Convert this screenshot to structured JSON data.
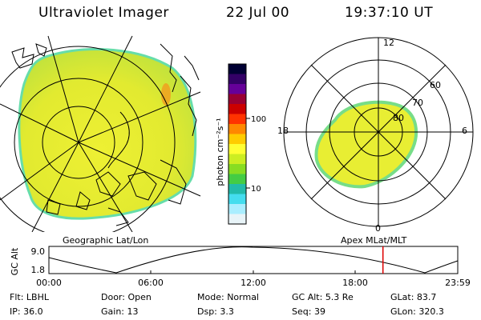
{
  "header": {
    "instrument": "Ultraviolet Imager",
    "date": "22 Jul 00",
    "time": "19:37:10 UT"
  },
  "left_panel": {
    "label": "Geographic Lat/Lon"
  },
  "right_panel": {
    "label": "Apex MLat/MLT",
    "mlt_labels": {
      "top": "12",
      "left": "18",
      "right": "6",
      "bottom": "0"
    },
    "lat_labels": [
      "60",
      "70",
      "80"
    ]
  },
  "colorbar": {
    "unit_label": "photon cm⁻²s⁻¹",
    "tick_labels": [
      "100",
      "10"
    ],
    "colors": [
      "#000033",
      "#330066",
      "#660099",
      "#990033",
      "#cc0000",
      "#ff3300",
      "#ff8800",
      "#ffcc00",
      "#ffff33",
      "#ccee22",
      "#88dd22",
      "#44cc44",
      "#22bbaa",
      "#44ddee",
      "#aaeeff",
      "#e8f4f8"
    ]
  },
  "timeline": {
    "axis_label": "GC Alt",
    "y_ticks": [
      "9.0",
      "1.8"
    ],
    "x_ticks": [
      "00:00",
      "06:00",
      "12:00",
      "18:00",
      "23:59"
    ],
    "current_time_fraction": 0.817,
    "marker_color": "#dd0000"
  },
  "info_rows": [
    [
      {
        "label": "Flt:",
        "value": "LBHL"
      },
      {
        "label": "Door:",
        "value": "Open"
      },
      {
        "label": "Mode:",
        "value": "Normal"
      },
      {
        "label": "GC Alt:",
        "value": "5.3 Re"
      },
      {
        "label": "GLat:",
        "value": "83.7"
      }
    ],
    [
      {
        "label": "IP:",
        "value": "36.0"
      },
      {
        "label": "Gain:",
        "value": "13"
      },
      {
        "label": "Dsp:",
        "value": "3.3"
      },
      {
        "label": "Seq:",
        "value": "39"
      },
      {
        "label": "GLon:",
        "value": "320.3"
      }
    ]
  ]
}
